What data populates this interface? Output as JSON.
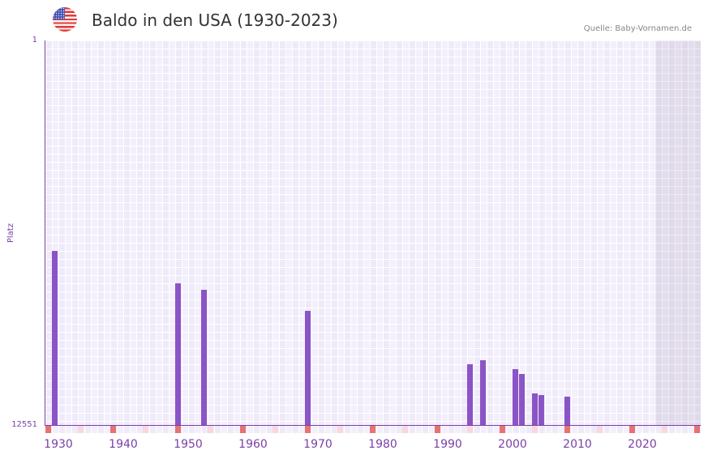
{
  "header": {
    "title": "Baldo in den USA (1930-2023)",
    "source": "Quelle: Baby-Vornamen.de",
    "flag_icon": "us-flag-icon"
  },
  "colors": {
    "bar": "#8b54c6",
    "axis": "#7b3fa8",
    "decade_marker": "#e57373",
    "half_decade_marker": "#f8d7e0"
  },
  "chart_data": {
    "type": "bar",
    "title": "Baldo in den USA (1930-2023)",
    "xlabel": "",
    "ylabel": "Platz",
    "y_inverted": true,
    "ylim": [
      1,
      12551
    ],
    "xlim": [
      1930,
      2030
    ],
    "x_ticks": [
      "1930",
      "1940",
      "1950",
      "1960",
      "1970",
      "1980",
      "1990",
      "2000",
      "2010",
      "2020"
    ],
    "y_ticks": [
      "1",
      "12551"
    ],
    "grid": true,
    "legend": null,
    "future_shaded_from": 2024,
    "categories": [
      1931,
      1950,
      1954,
      1970,
      1995,
      1997,
      2002,
      2003,
      2005,
      2006,
      2010
    ],
    "values": [
      6870,
      7927,
      8138,
      8825,
      10569,
      10437,
      10728,
      10887,
      11521,
      11573,
      11626
    ]
  },
  "axis": {
    "ylabel": "Platz",
    "ytick_top": "1",
    "ytick_bottom": "12551"
  }
}
